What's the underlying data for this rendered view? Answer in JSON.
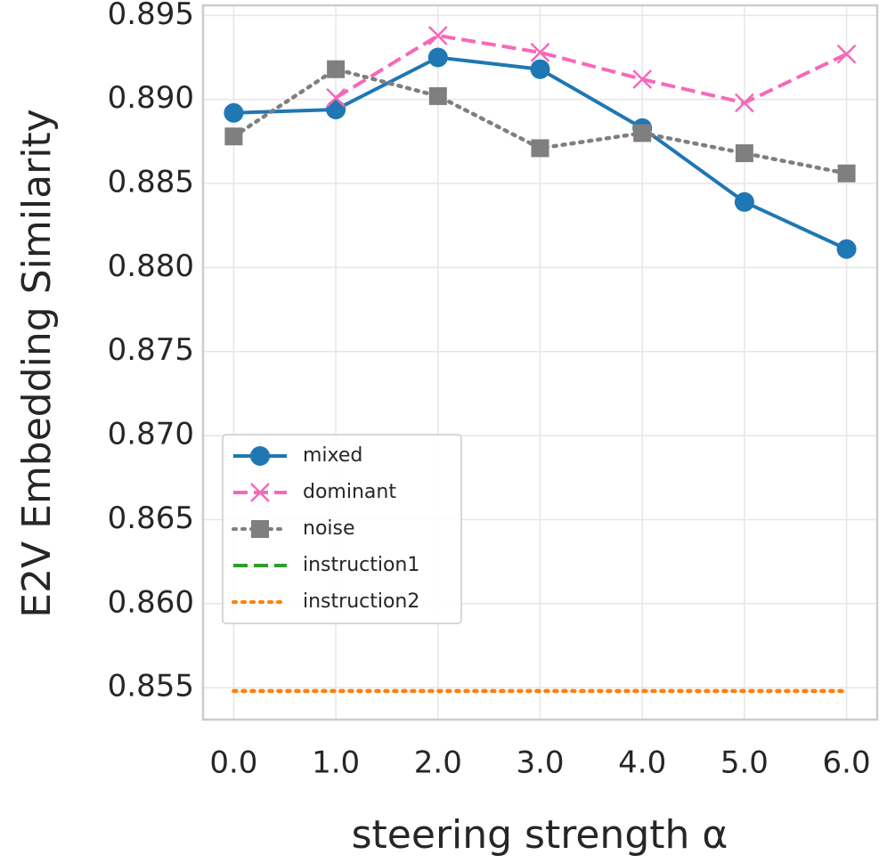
{
  "chart_data": {
    "type": "line",
    "xlabel": "steering strength α",
    "ylabel": "E2V Embedding Similarity",
    "x": [
      0,
      1,
      2,
      3,
      4,
      5,
      6
    ],
    "series": [
      {
        "name": "mixed",
        "color": "#1f77b4",
        "linestyle": "solid",
        "marker": "circle",
        "values": [
          0.8892,
          0.8894,
          0.8925,
          0.8918,
          0.8883,
          0.8839,
          0.8811
        ]
      },
      {
        "name": "dominant",
        "color": "#f768b9",
        "linestyle": "dashed",
        "marker": "x",
        "values": [
          null,
          0.8901,
          0.8938,
          0.8928,
          0.8912,
          0.8898,
          0.8927
        ]
      },
      {
        "name": "noise",
        "color": "#7f7f7f",
        "linestyle": "dotted",
        "marker": "square",
        "values": [
          0.8878,
          0.8918,
          0.8902,
          0.8871,
          0.888,
          0.8868,
          0.8856
        ]
      },
      {
        "name": "instruction1",
        "color": "#2ca02c",
        "linestyle": "dashed",
        "marker": "none",
        "values": [
          null,
          null,
          null,
          null,
          null,
          null,
          null
        ]
      },
      {
        "name": "instruction2",
        "color": "#ff7f0e",
        "linestyle": "dotted",
        "marker": "none",
        "values": [
          0.8548,
          0.8548,
          0.8548,
          0.8548,
          0.8548,
          0.8548,
          0.8548
        ]
      }
    ],
    "xlim": [
      -0.3,
      6.3
    ],
    "ylim": [
      0.8531,
      0.8956
    ],
    "xticks": [
      {
        "value": 0,
        "label": "0.0"
      },
      {
        "value": 1,
        "label": "1.0"
      },
      {
        "value": 2,
        "label": "2.0"
      },
      {
        "value": 3,
        "label": "3.0"
      },
      {
        "value": 4,
        "label": "4.0"
      },
      {
        "value": 5,
        "label": "5.0"
      },
      {
        "value": 6,
        "label": "6.0"
      }
    ],
    "yticks": [
      0.855,
      {
        "value": 0.86,
        "label": "0.860"
      },
      0.865,
      {
        "value": 0.87,
        "label": "0.870"
      },
      0.875,
      {
        "value": 0.88,
        "label": "0.880"
      },
      0.885,
      {
        "value": 0.89,
        "label": "0.890"
      },
      0.895
    ],
    "grid": true,
    "legend_loc": "center left"
  }
}
